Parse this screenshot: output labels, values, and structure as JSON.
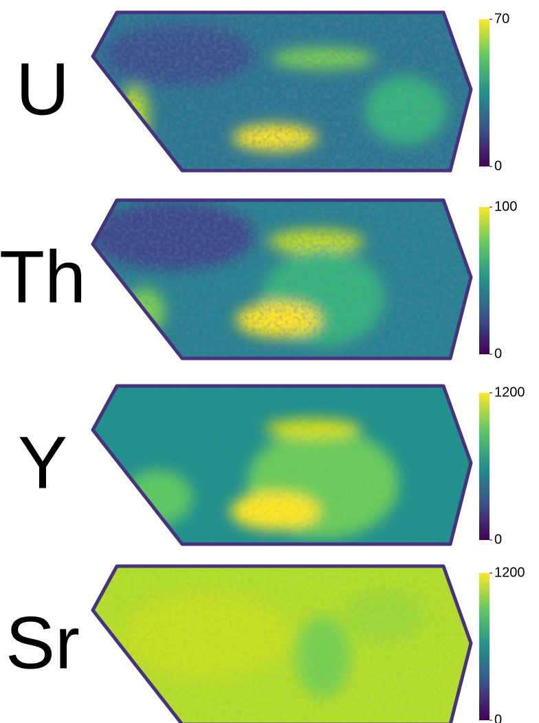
{
  "panels": [
    {
      "label": "U",
      "colorbar": {
        "clim": [
          0,
          70
        ],
        "ticks": [
          0,
          70
        ]
      }
    },
    {
      "label": "Th",
      "colorbar": {
        "clim": [
          0,
          100
        ],
        "ticks": [
          0,
          100
        ]
      }
    },
    {
      "label": "Y",
      "colorbar": {
        "clim": [
          0,
          1200
        ],
        "ticks": [
          0,
          1200
        ]
      }
    },
    {
      "label": "Sr",
      "colorbar": {
        "clim": [
          0,
          1200
        ],
        "ticks": [
          0,
          1200
        ]
      }
    }
  ]
}
